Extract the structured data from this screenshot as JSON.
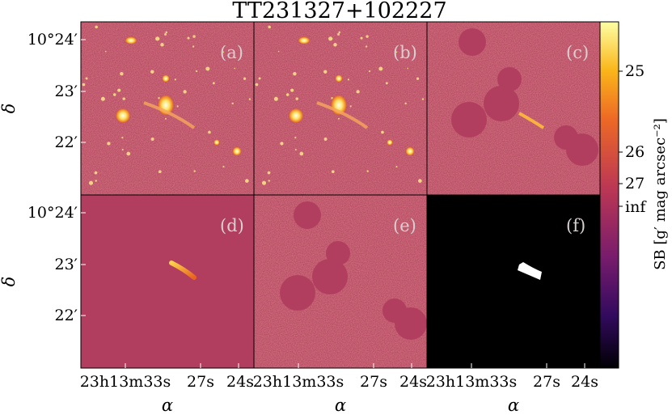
{
  "title": "TT231327+102227",
  "panels": [
    {
      "label": "(a)",
      "kind": "image"
    },
    {
      "label": "(b)",
      "kind": "model"
    },
    {
      "label": "(c)",
      "kind": "masked"
    },
    {
      "label": "(d)",
      "kind": "arc-model"
    },
    {
      "label": "(e)",
      "kind": "residual"
    },
    {
      "label": "(f)",
      "kind": "mask"
    }
  ],
  "y_axis": {
    "label": "δ",
    "ticks": [
      {
        "text": "10°24′",
        "value": 24.0
      },
      {
        "text": "23′",
        "value": 23.0
      },
      {
        "text": "22′",
        "value": 22.0
      }
    ]
  },
  "x_axis": {
    "label": "α",
    "ticks": [
      {
        "text": "23h13m33s",
        "value": 33
      },
      {
        "text": "27s",
        "value": 27
      },
      {
        "text": "24s",
        "value": 24
      }
    ]
  },
  "colorbar": {
    "label": "SB [g′ mag arcsec⁻²]",
    "ticks": [
      {
        "text": "25",
        "value": 25
      },
      {
        "text": "26",
        "value": 26
      },
      {
        "text": "27",
        "value": 27
      },
      {
        "text": "inf",
        "value": "inf"
      }
    ],
    "colormap": "inferno",
    "colors": [
      "#000004",
      "#320a5e",
      "#781c6d",
      "#bc3754",
      "#ed6925",
      "#fbb61a",
      "#fcffa4"
    ]
  },
  "colors": {
    "background_panel": "#b23e5f",
    "mask_background": "#000000",
    "mask_region": "#ffffff"
  }
}
